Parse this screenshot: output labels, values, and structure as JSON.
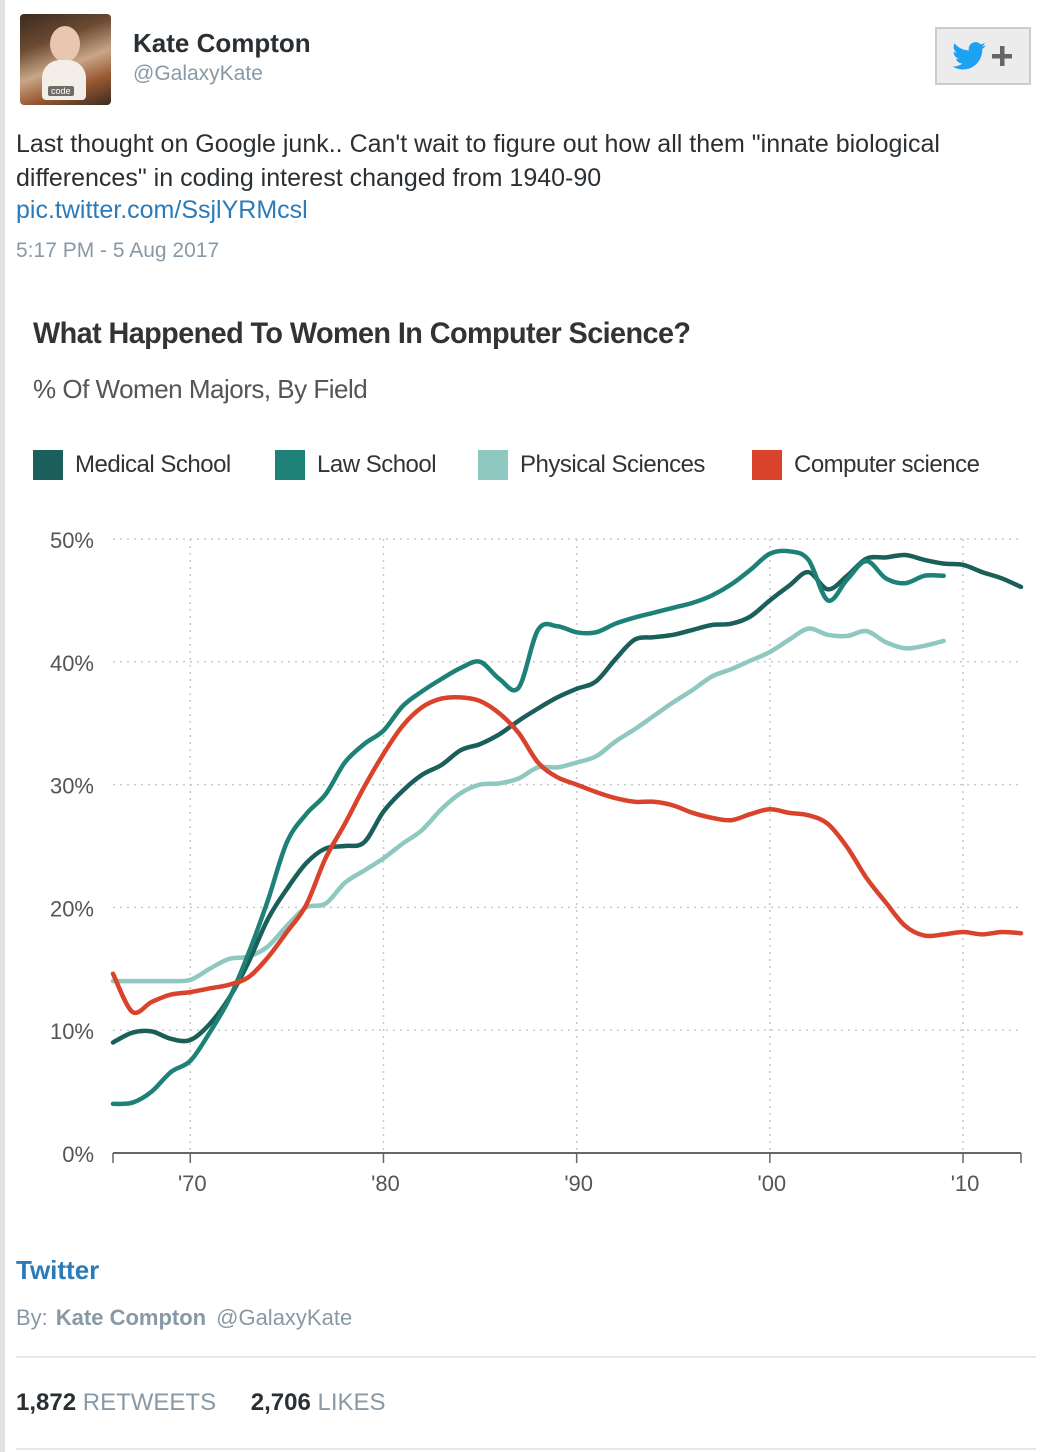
{
  "tweet": {
    "author_name": "Kate Compton",
    "author_handle": "@GalaxyKate",
    "avatar_caption": "code",
    "follow_button_label": "+",
    "text": "Last thought on Google junk.. Can't wait to figure out how all them \"innate biological differences\" in coding interest changed from 1940-90",
    "link_text": "pic.twitter.com/SsjlYRMcsl",
    "timestamp": "5:17 PM - 5 Aug 2017"
  },
  "embed": {
    "source_label": "Twitter",
    "by_prefix": "By:",
    "by_name": "Kate Compton",
    "by_handle": "@GalaxyKate"
  },
  "stats": {
    "retweets_count": "1,872",
    "retweets_label": "RETWEETS",
    "likes_count": "2,706",
    "likes_label": "LIKES"
  },
  "colors": {
    "twitter_blue": "#1da1f2",
    "link_blue": "#2b7bb9"
  },
  "chart_data": {
    "type": "line",
    "title": "What Happened To Women In Computer Science?",
    "subtitle": "% Of Women Majors, By Field",
    "xlabel": "",
    "ylabel": "",
    "xlim": [
      1966,
      2013
    ],
    "ylim": [
      0,
      50
    ],
    "x_ticks": [
      1970,
      1980,
      1990,
      2000,
      2010
    ],
    "x_tick_labels": [
      "'70",
      "'80",
      "'90",
      "'00",
      "'10"
    ],
    "y_ticks": [
      0,
      10,
      20,
      30,
      40,
      50
    ],
    "y_tick_labels": [
      "0%",
      "10%",
      "20%",
      "30%",
      "40%",
      "50%"
    ],
    "grid": true,
    "legend_position": "top",
    "series": [
      {
        "name": "Medical School",
        "color": "#1a5f59",
        "x": [
          1966,
          1967,
          1968,
          1969,
          1970,
          1971,
          1972,
          1973,
          1974,
          1975,
          1976,
          1977,
          1978,
          1979,
          1980,
          1981,
          1982,
          1983,
          1984,
          1985,
          1986,
          1987,
          1988,
          1989,
          1990,
          1991,
          1992,
          1993,
          1994,
          1995,
          1996,
          1997,
          1998,
          1999,
          2000,
          2001,
          2002,
          2003,
          2004,
          2005,
          2006,
          2007,
          2008,
          2009,
          2010,
          2011,
          2012,
          2013
        ],
        "values": [
          9.0,
          9.8,
          9.9,
          9.3,
          9.2,
          10.5,
          12.6,
          15.5,
          19.0,
          21.5,
          23.6,
          24.8,
          25.0,
          25.3,
          27.8,
          29.5,
          30.8,
          31.6,
          32.8,
          33.3,
          34.1,
          35.2,
          36.2,
          37.1,
          37.8,
          38.4,
          40.2,
          41.8,
          42.0,
          42.2,
          42.6,
          43.0,
          43.1,
          43.7,
          45.0,
          46.2,
          47.3,
          45.9,
          47.0,
          48.4,
          48.5,
          48.7,
          48.3,
          48.0,
          47.9,
          47.3,
          46.8,
          46.1
        ]
      },
      {
        "name": "Law School",
        "color": "#1d8177",
        "x": [
          1966,
          1967,
          1968,
          1969,
          1970,
          1971,
          1972,
          1973,
          1974,
          1975,
          1976,
          1977,
          1978,
          1979,
          1980,
          1981,
          1982,
          1983,
          1984,
          1985,
          1986,
          1987,
          1988,
          1989,
          1990,
          1991,
          1992,
          1993,
          1994,
          1995,
          1996,
          1997,
          1998,
          1999,
          2000,
          2001,
          2002,
          2003,
          2004,
          2005,
          2006,
          2007,
          2008,
          2009
        ],
        "values": [
          4.0,
          4.1,
          5.0,
          6.6,
          7.5,
          9.8,
          12.5,
          16.2,
          20.5,
          25.3,
          27.6,
          29.2,
          31.8,
          33.3,
          34.4,
          36.4,
          37.6,
          38.6,
          39.5,
          40.0,
          38.6,
          37.9,
          42.6,
          42.9,
          42.4,
          42.4,
          43.1,
          43.6,
          44.0,
          44.4,
          44.8,
          45.4,
          46.3,
          47.5,
          48.8,
          49.0,
          48.3,
          45.0,
          46.7,
          48.2,
          46.8,
          46.4,
          47.0,
          47.0
        ]
      },
      {
        "name": "Physical Sciences",
        "color": "#8fc7c1",
        "x": [
          1966,
          1967,
          1968,
          1969,
          1970,
          1971,
          1972,
          1973,
          1974,
          1975,
          1976,
          1977,
          1978,
          1979,
          1980,
          1981,
          1982,
          1983,
          1984,
          1985,
          1986,
          1987,
          1988,
          1989,
          1990,
          1991,
          1992,
          1993,
          1994,
          1995,
          1996,
          1997,
          1998,
          1999,
          2000,
          2001,
          2002,
          2003,
          2004,
          2005,
          2006,
          2007,
          2008,
          2009
        ],
        "values": [
          14.0,
          14.0,
          14.0,
          14.0,
          14.1,
          15.0,
          15.8,
          16.0,
          16.8,
          18.5,
          20.0,
          20.3,
          22.0,
          23.0,
          24.0,
          25.2,
          26.3,
          28.0,
          29.3,
          30.0,
          30.1,
          30.5,
          31.4,
          31.4,
          31.8,
          32.3,
          33.5,
          34.5,
          35.6,
          36.7,
          37.7,
          38.8,
          39.4,
          40.1,
          40.8,
          41.8,
          42.7,
          42.2,
          42.1,
          42.5,
          41.6,
          41.1,
          41.3,
          41.7
        ]
      },
      {
        "name": "Computer science",
        "color": "#d9432c",
        "x": [
          1966,
          1967,
          1968,
          1969,
          1970,
          1971,
          1972,
          1973,
          1974,
          1975,
          1976,
          1977,
          1978,
          1979,
          1980,
          1981,
          1982,
          1983,
          1984,
          1985,
          1986,
          1987,
          1988,
          1989,
          1990,
          1991,
          1992,
          1993,
          1994,
          1995,
          1996,
          1997,
          1998,
          1999,
          2000,
          2001,
          2002,
          2003,
          2004,
          2005,
          2006,
          2007,
          2008,
          2009,
          2010,
          2011,
          2012,
          2013
        ],
        "values": [
          14.6,
          11.5,
          12.3,
          12.9,
          13.1,
          13.4,
          13.7,
          14.3,
          15.9,
          18.0,
          20.2,
          24.0,
          26.8,
          29.8,
          32.5,
          34.8,
          36.3,
          37.0,
          37.1,
          36.8,
          35.8,
          34.2,
          31.8,
          30.6,
          30.0,
          29.4,
          28.9,
          28.6,
          28.6,
          28.3,
          27.7,
          27.3,
          27.1,
          27.6,
          28.0,
          27.7,
          27.5,
          26.8,
          24.9,
          22.4,
          20.4,
          18.5,
          17.7,
          17.8,
          18.0,
          17.8,
          18.0,
          17.9
        ]
      }
    ]
  }
}
